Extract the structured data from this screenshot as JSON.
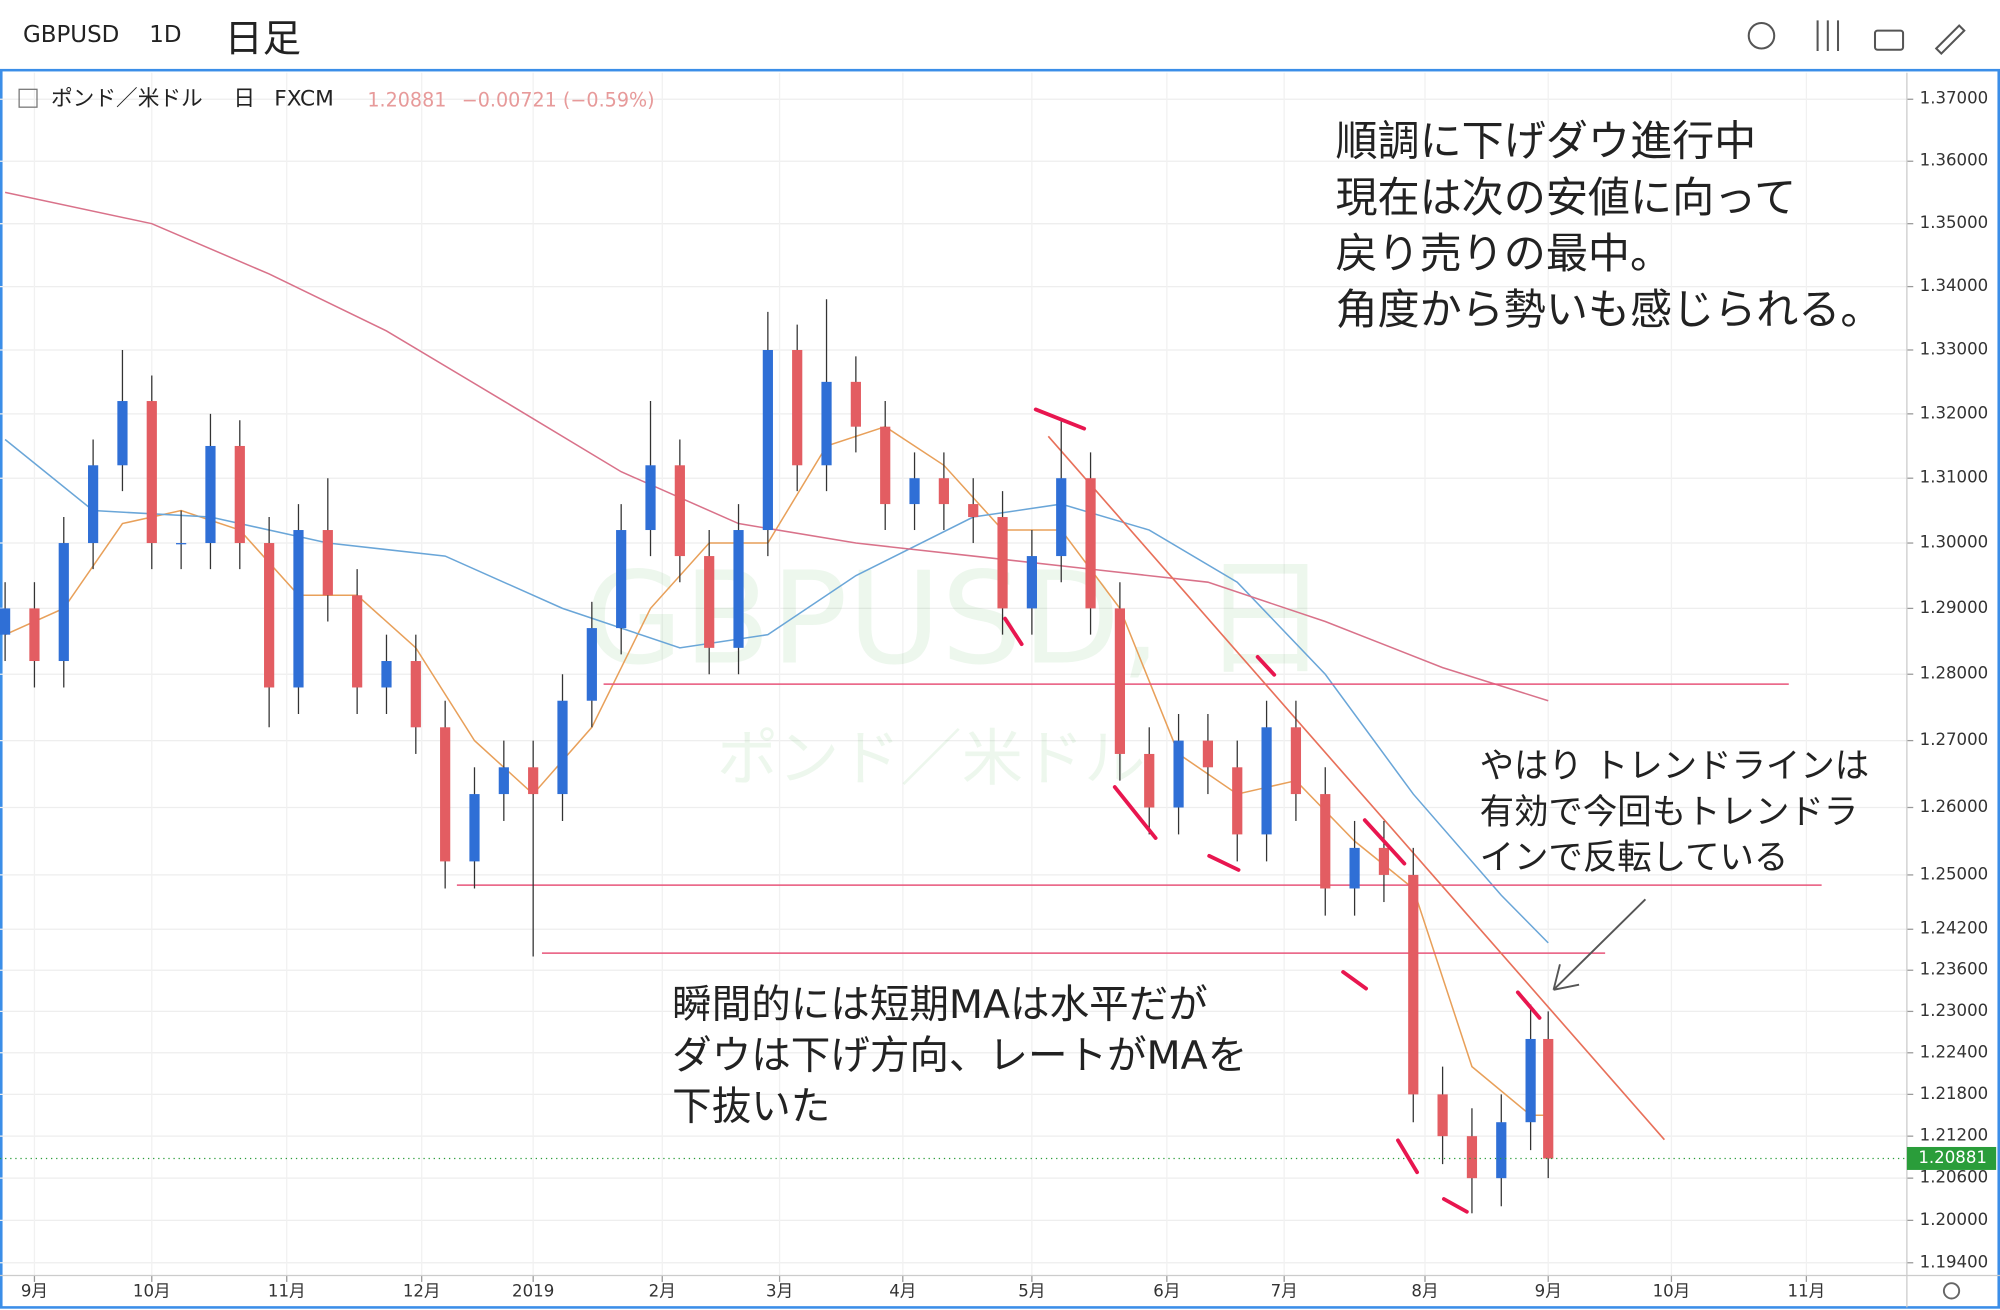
{
  "header": {
    "symbol": "GBPUSD",
    "interval": "1D",
    "note": "日足"
  },
  "chart_data": {
    "type": "candlestick",
    "log_scale": true,
    "grid": true,
    "symbol_name": "ポンド／米ドル",
    "period": "日",
    "source": "FXCM",
    "change": "−0.00721 (−0.59%)",
    "last_price": 1.20881,
    "watermark": [
      "GBPUSD, 日",
      "ポンド／米ドル"
    ],
    "up_color": "#2f6fd6",
    "down_color": "#e35d62",
    "xlim": [
      -5.87,
      319.13
    ],
    "ylim": [
      1.1922,
      1.3743
    ],
    "xticks": [
      {
        "value": 0,
        "label": "9月"
      },
      {
        "value": 20,
        "label": "10月"
      },
      {
        "value": 43,
        "label": "11月"
      },
      {
        "value": 66,
        "label": "12月"
      },
      {
        "value": 85,
        "label": "2019"
      },
      {
        "value": 107,
        "label": "2月"
      },
      {
        "value": 127,
        "label": "3月"
      },
      {
        "value": 148,
        "label": "4月"
      },
      {
        "value": 170,
        "label": "5月"
      },
      {
        "value": 193,
        "label": "6月"
      },
      {
        "value": 213,
        "label": "7月"
      },
      {
        "value": 237,
        "label": "8月"
      },
      {
        "value": 258,
        "label": "9月"
      },
      {
        "value": 279,
        "label": "10月"
      },
      {
        "value": 302,
        "label": "11月"
      }
    ],
    "yticks": [
      {
        "value": 1.37,
        "label": "1.37000"
      },
      {
        "value": 1.36,
        "label": "1.36000"
      },
      {
        "value": 1.35,
        "label": "1.35000"
      },
      {
        "value": 1.34,
        "label": "1.34000"
      },
      {
        "value": 1.33,
        "label": "1.33000"
      },
      {
        "value": 1.32,
        "label": "1.32000"
      },
      {
        "value": 1.31,
        "label": "1.31000"
      },
      {
        "value": 1.3,
        "label": "1.30000"
      },
      {
        "value": 1.29,
        "label": "1.29000"
      },
      {
        "value": 1.28,
        "label": "1.28000"
      },
      {
        "value": 1.27,
        "label": "1.27000"
      },
      {
        "value": 1.26,
        "label": "1.26000"
      },
      {
        "value": 1.25,
        "label": "1.25000"
      },
      {
        "value": 1.242,
        "label": "1.24200"
      },
      {
        "value": 1.236,
        "label": "1.23600"
      },
      {
        "value": 1.23,
        "label": "1.23000"
      },
      {
        "value": 1.224,
        "label": "1.22400"
      },
      {
        "value": 1.218,
        "label": "1.21800"
      },
      {
        "value": 1.212,
        "label": "1.21200"
      },
      {
        "value": 1.206,
        "label": "1.20600"
      },
      {
        "value": 1.2,
        "label": "1.20000"
      },
      {
        "value": 1.194,
        "label": "1.19400"
      }
    ],
    "x": [
      -5,
      0,
      5,
      10,
      15,
      20,
      25,
      30,
      35,
      40,
      45,
      50,
      55,
      60,
      65,
      70,
      75,
      80,
      85,
      90,
      95,
      100,
      105,
      110,
      115,
      120,
      125,
      130,
      135,
      140,
      145,
      150,
      155,
      160,
      165,
      170,
      175,
      180,
      185,
      190,
      195,
      200,
      205,
      210,
      215,
      220,
      225,
      230,
      235,
      240,
      245,
      250,
      255,
      258
    ],
    "open": [
      1.286,
      1.29,
      1.282,
      1.3,
      1.312,
      1.322,
      1.3,
      1.3,
      1.315,
      1.3,
      1.278,
      1.302,
      1.292,
      1.278,
      1.282,
      1.272,
      1.252,
      1.262,
      1.266,
      1.262,
      1.276,
      1.287,
      1.302,
      1.312,
      1.298,
      1.284,
      1.302,
      1.33,
      1.312,
      1.325,
      1.318,
      1.306,
      1.31,
      1.306,
      1.304,
      1.29,
      1.298,
      1.31,
      1.29,
      1.268,
      1.26,
      1.27,
      1.266,
      1.256,
      1.272,
      1.262,
      1.248,
      1.254,
      1.25,
      1.218,
      1.212,
      1.206,
      1.214,
      1.226
    ],
    "high": [
      1.294,
      1.294,
      1.304,
      1.316,
      1.33,
      1.326,
      1.305,
      1.32,
      1.319,
      1.304,
      1.306,
      1.31,
      1.296,
      1.286,
      1.286,
      1.276,
      1.266,
      1.27,
      1.27,
      1.28,
      1.291,
      1.306,
      1.322,
      1.316,
      1.302,
      1.306,
      1.336,
      1.334,
      1.338,
      1.329,
      1.322,
      1.314,
      1.314,
      1.31,
      1.308,
      1.302,
      1.319,
      1.314,
      1.294,
      1.272,
      1.274,
      1.274,
      1.27,
      1.276,
      1.276,
      1.266,
      1.258,
      1.258,
      1.254,
      1.222,
      1.216,
      1.218,
      1.231,
      1.23
    ],
    "low": [
      1.282,
      1.278,
      1.278,
      1.296,
      1.308,
      1.296,
      1.296,
      1.296,
      1.296,
      1.272,
      1.274,
      1.288,
      1.274,
      1.274,
      1.268,
      1.248,
      1.248,
      1.258,
      1.238,
      1.258,
      1.272,
      1.283,
      1.298,
      1.294,
      1.28,
      1.28,
      1.298,
      1.308,
      1.308,
      1.314,
      1.302,
      1.302,
      1.302,
      1.3,
      1.286,
      1.286,
      1.294,
      1.286,
      1.264,
      1.256,
      1.256,
      1.262,
      1.252,
      1.252,
      1.258,
      1.244,
      1.244,
      1.246,
      1.214,
      1.208,
      1.201,
      1.202,
      1.21,
      1.206
    ],
    "close": [
      1.29,
      1.282,
      1.3,
      1.312,
      1.322,
      1.3,
      1.3,
      1.315,
      1.3,
      1.278,
      1.302,
      1.292,
      1.278,
      1.282,
      1.272,
      1.252,
      1.262,
      1.266,
      1.262,
      1.276,
      1.287,
      1.302,
      1.312,
      1.298,
      1.284,
      1.302,
      1.33,
      1.312,
      1.325,
      1.318,
      1.306,
      1.31,
      1.306,
      1.304,
      1.29,
      1.298,
      1.31,
      1.29,
      1.268,
      1.26,
      1.27,
      1.266,
      1.256,
      1.272,
      1.262,
      1.248,
      1.254,
      1.25,
      1.218,
      1.212,
      1.206,
      1.214,
      1.226,
      1.2088
    ],
    "lines": [
      {
        "color": "#e8a05a",
        "x": [
          -5,
          5,
          15,
          25,
          35,
          45,
          55,
          65,
          75,
          85,
          95,
          105,
          115,
          125,
          135,
          145,
          155,
          165,
          175,
          185,
          195,
          205,
          215,
          225,
          235,
          245,
          255,
          258
        ],
        "values": [
          1.286,
          1.29,
          1.303,
          1.305,
          1.302,
          1.292,
          1.292,
          1.284,
          1.27,
          1.262,
          1.272,
          1.29,
          1.3,
          1.3,
          1.315,
          1.318,
          1.312,
          1.302,
          1.302,
          1.29,
          1.268,
          1.262,
          1.264,
          1.255,
          1.248,
          1.222,
          1.215,
          1.215
        ]
      },
      {
        "color": "#6aa6d8",
        "x": [
          -5,
          10,
          30,
          50,
          70,
          90,
          110,
          125,
          140,
          160,
          175,
          190,
          205,
          220,
          235,
          250,
          258
        ],
        "values": [
          1.316,
          1.305,
          1.304,
          1.3,
          1.298,
          1.29,
          1.284,
          1.286,
          1.295,
          1.304,
          1.306,
          1.302,
          1.294,
          1.28,
          1.262,
          1.247,
          1.24
        ]
      },
      {
        "color": "#d9728a",
        "x": [
          -5,
          20,
          40,
          60,
          80,
          100,
          120,
          140,
          160,
          180,
          200,
          220,
          240,
          258
        ],
        "values": [
          1.355,
          1.35,
          1.342,
          1.333,
          1.322,
          1.311,
          1.303,
          1.3,
          1.298,
          1.296,
          1.294,
          1.288,
          1.281,
          1.276
        ]
      }
    ],
    "hlines": [
      {
        "value": 1.2785,
        "x": [
          97,
          299
        ]
      },
      {
        "value": 1.2485,
        "x": [
          72,
          304.6
        ]
      },
      {
        "value": 1.2385,
        "x": [
          86.5,
          267.7
        ]
      }
    ],
    "trendline": {
      "x": [
        172.8,
        277.8
      ],
      "y": [
        1.3165,
        1.2115
      ]
    },
    "annotations": [
      [
        "順調に下げダウ進行中",
        "現在は次の安値に向って",
        "戻り売りの最中。",
        "角度から勢いも感じられる。"
      ],
      [
        "やはり トレンドラインは",
        "有効で今回もトレンドラ",
        "インで反転している"
      ],
      [
        "瞬間的には短期MAは水平だが",
        "ダウは下げ方向、レートがMAを",
        "下抜いた"
      ]
    ]
  }
}
